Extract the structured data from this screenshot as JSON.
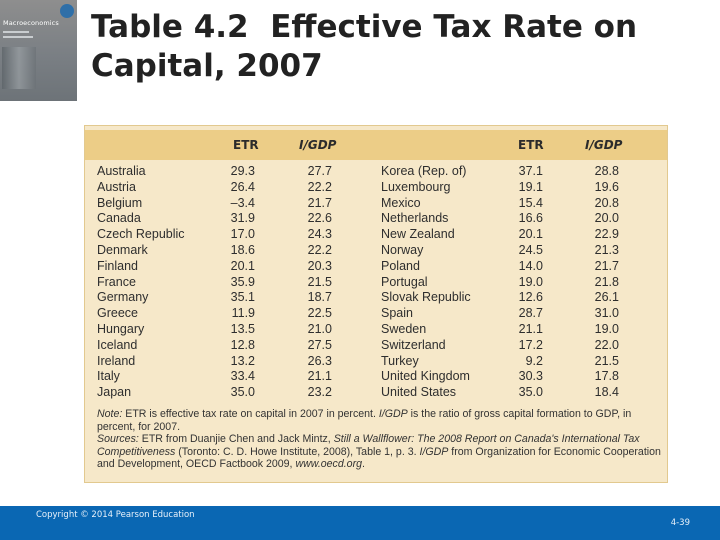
{
  "cover": {
    "title": "Macroeconomics"
  },
  "title": {
    "number": "Table 4.2",
    "text": "Effective Tax Rate on Capital, 2007"
  },
  "table": {
    "headers": {
      "etr": "ETR",
      "igdp": "I/GDP"
    },
    "left": [
      {
        "country": "Australia",
        "etr": "29.3",
        "igdp": "27.7"
      },
      {
        "country": "Austria",
        "etr": "26.4",
        "igdp": "22.2"
      },
      {
        "country": "Belgium",
        "etr": "–3.4",
        "igdp": "21.7"
      },
      {
        "country": "Canada",
        "etr": "31.9",
        "igdp": "22.6"
      },
      {
        "country": "Czech Republic",
        "etr": "17.0",
        "igdp": "24.3"
      },
      {
        "country": "Denmark",
        "etr": "18.6",
        "igdp": "22.2"
      },
      {
        "country": "Finland",
        "etr": "20.1",
        "igdp": "20.3"
      },
      {
        "country": "France",
        "etr": "35.9",
        "igdp": "21.5"
      },
      {
        "country": "Germany",
        "etr": "35.1",
        "igdp": "18.7"
      },
      {
        "country": "Greece",
        "etr": "11.9",
        "igdp": "22.5"
      },
      {
        "country": "Hungary",
        "etr": "13.5",
        "igdp": "21.0"
      },
      {
        "country": "Iceland",
        "etr": "12.8",
        "igdp": "27.5"
      },
      {
        "country": "Ireland",
        "etr": "13.2",
        "igdp": "26.3"
      },
      {
        "country": "Italy",
        "etr": "33.4",
        "igdp": "21.1"
      },
      {
        "country": "Japan",
        "etr": "35.0",
        "igdp": "23.2"
      }
    ],
    "right": [
      {
        "country": "Korea (Rep. of)",
        "etr": "37.1",
        "igdp": "28.8"
      },
      {
        "country": "Luxembourg",
        "etr": "19.1",
        "igdp": "19.6"
      },
      {
        "country": "Mexico",
        "etr": "15.4",
        "igdp": "20.8"
      },
      {
        "country": "Netherlands",
        "etr": "16.6",
        "igdp": "20.0"
      },
      {
        "country": "New Zealand",
        "etr": "20.1",
        "igdp": "22.9"
      },
      {
        "country": "Norway",
        "etr": "24.5",
        "igdp": "21.3"
      },
      {
        "country": "Poland",
        "etr": "14.0",
        "igdp": "21.7"
      },
      {
        "country": "Portugal",
        "etr": "19.0",
        "igdp": "21.8"
      },
      {
        "country": "Slovak Republic",
        "etr": "12.6",
        "igdp": "26.1"
      },
      {
        "country": "Spain",
        "etr": "28.7",
        "igdp": "31.0"
      },
      {
        "country": "Sweden",
        "etr": "21.1",
        "igdp": "19.0"
      },
      {
        "country": "Switzerland",
        "etr": "17.2",
        "igdp": "22.0"
      },
      {
        "country": "Turkey",
        "etr": "9.2",
        "igdp": "21.5"
      },
      {
        "country": "United Kingdom",
        "etr": "30.3",
        "igdp": "17.8"
      },
      {
        "country": "United States",
        "etr": "35.0",
        "igdp": "18.4"
      }
    ],
    "note": {
      "label": "Note:",
      "text1": " ETR is effective tax rate on capital in 2007 in percent. ",
      "igdp": "I/GDP",
      "text2": " is the ratio of gross capital formation to GDP, in percent, for 2007."
    },
    "sources": {
      "label": "Sources:",
      "text1": " ETR from Duanjie Chen and Jack Mintz, ",
      "work": "Still a Wallflower: The 2008 Report on Canada's International Tax Competitiveness",
      "text2": " (Toronto: C. D. Howe Institute, 2008), Table 1, p. 3. ",
      "igdp": "I/GDP",
      "text3": " from Organization for Economic Cooperation and Development, OECD Factbook 2009, ",
      "url": "www.oecd.org",
      "end": "."
    }
  },
  "footer": {
    "copyright": "Copyright © 2014 Pearson Education",
    "page": "4-39"
  }
}
